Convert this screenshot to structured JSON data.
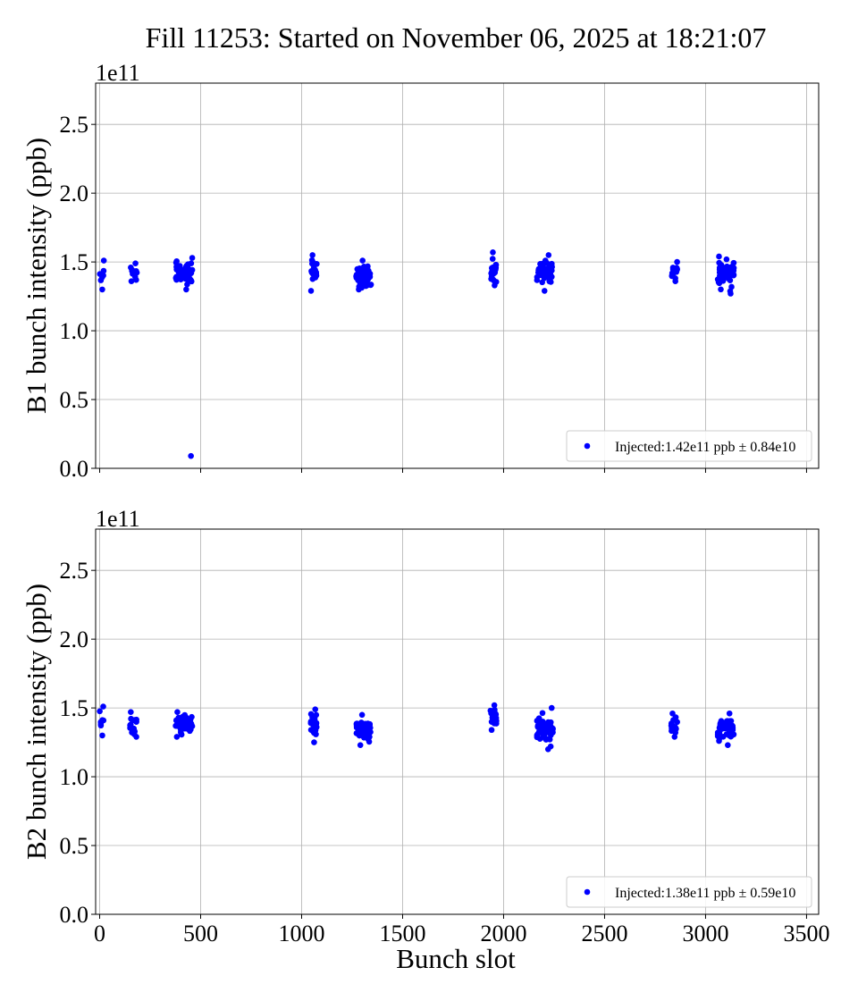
{
  "figure": {
    "title": "Fill 11253: Started on November 06, 2025 at 18:21:07",
    "xlabel": "Bunch slot"
  },
  "chart_data": [
    {
      "type": "scatter",
      "ylabel": "B1 bunch intensity (ppb)",
      "y_offset_label": "1e11",
      "xlim": [
        -20,
        3560
      ],
      "ylim": [
        0.0,
        2.8
      ],
      "xticks": [
        0,
        500,
        1000,
        1500,
        2000,
        2500,
        3000,
        3500
      ],
      "xtick_labels_visible": false,
      "yticks": [
        0.0,
        0.5,
        1.0,
        1.5,
        2.0,
        2.5
      ],
      "ytick_labels": [
        "0.0",
        "0.5",
        "1.0",
        "1.5",
        "2.0",
        "2.5"
      ],
      "grid": true,
      "legend_position": "lower-right",
      "color": "#0000ff",
      "series": [
        {
          "name": "Injected:1.42e11 ppb ± 0.84e10",
          "clusters": [
            {
              "x_start": 0,
              "x_end": 25,
              "y_min": 1.3,
              "y_max": 1.51,
              "n": 8
            },
            {
              "x_start": 150,
              "x_end": 185,
              "y_min": 1.36,
              "y_max": 1.49,
              "n": 16
            },
            {
              "x_start": 375,
              "x_end": 460,
              "y_min": 1.3,
              "y_max": 1.53,
              "n": 60
            },
            {
              "x_start": 1045,
              "x_end": 1075,
              "y_min": 1.29,
              "y_max": 1.55,
              "n": 24
            },
            {
              "x_start": 1270,
              "x_end": 1345,
              "y_min": 1.3,
              "y_max": 1.51,
              "n": 60
            },
            {
              "x_start": 1935,
              "x_end": 1965,
              "y_min": 1.33,
              "y_max": 1.57,
              "n": 24
            },
            {
              "x_start": 2165,
              "x_end": 2240,
              "y_min": 1.29,
              "y_max": 1.55,
              "n": 60
            },
            {
              "x_start": 2830,
              "x_end": 2860,
              "y_min": 1.36,
              "y_max": 1.5,
              "n": 20
            },
            {
              "x_start": 3060,
              "x_end": 3140,
              "y_min": 1.27,
              "y_max": 1.54,
              "n": 60
            }
          ],
          "outliers": [
            {
              "x": 452,
              "y": 0.09
            }
          ]
        }
      ]
    },
    {
      "type": "scatter",
      "ylabel": "B2 bunch intensity (ppb)",
      "y_offset_label": "1e11",
      "xlim": [
        -20,
        3560
      ],
      "ylim": [
        0.0,
        2.8
      ],
      "xticks": [
        0,
        500,
        1000,
        1500,
        2000,
        2500,
        3000,
        3500
      ],
      "xtick_labels": [
        "0",
        "500",
        "1000",
        "1500",
        "2000",
        "2500",
        "3000",
        "3500"
      ],
      "yticks": [
        0.0,
        0.5,
        1.0,
        1.5,
        2.0,
        2.5
      ],
      "ytick_labels": [
        "0.0",
        "0.5",
        "1.0",
        "1.5",
        "2.0",
        "2.5"
      ],
      "grid": true,
      "legend_position": "lower-right",
      "color": "#0000ff",
      "series": [
        {
          "name": "Injected:1.38e11 ppb ± 0.59e10",
          "clusters": [
            {
              "x_start": 0,
              "x_end": 20,
              "y_min": 1.3,
              "y_max": 1.51,
              "n": 8
            },
            {
              "x_start": 150,
              "x_end": 185,
              "y_min": 1.29,
              "y_max": 1.47,
              "n": 16
            },
            {
              "x_start": 375,
              "x_end": 460,
              "y_min": 1.29,
              "y_max": 1.47,
              "n": 60
            },
            {
              "x_start": 1045,
              "x_end": 1075,
              "y_min": 1.25,
              "y_max": 1.49,
              "n": 24
            },
            {
              "x_start": 1270,
              "x_end": 1345,
              "y_min": 1.23,
              "y_max": 1.45,
              "n": 60
            },
            {
              "x_start": 1935,
              "x_end": 1965,
              "y_min": 1.34,
              "y_max": 1.52,
              "n": 24
            },
            {
              "x_start": 2165,
              "x_end": 2245,
              "y_min": 1.2,
              "y_max": 1.5,
              "n": 60
            },
            {
              "x_start": 2830,
              "x_end": 2860,
              "y_min": 1.29,
              "y_max": 1.46,
              "n": 20
            },
            {
              "x_start": 3060,
              "x_end": 3140,
              "y_min": 1.23,
              "y_max": 1.46,
              "n": 60
            }
          ],
          "outliers": []
        }
      ]
    }
  ]
}
